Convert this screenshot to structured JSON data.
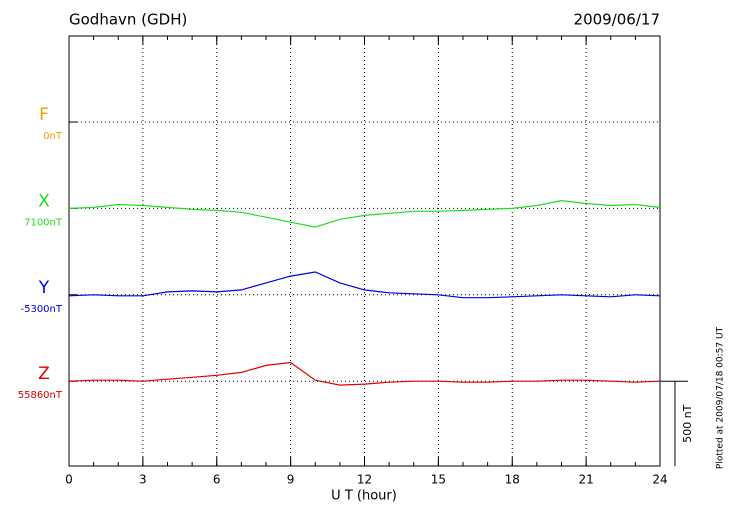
{
  "chart_data": {
    "type": "line",
    "title": "Godhavn (GDH)",
    "date": "2009/06/17",
    "xlabel": "U T (hour)",
    "footnote": "Plotted at 2009/07/18 00:57 UT",
    "xlim": [
      0,
      24
    ],
    "xticks": [
      0,
      3,
      6,
      9,
      12,
      15,
      18,
      21,
      24
    ],
    "grid": true,
    "scale_bar": {
      "value": 500,
      "label": "500 nT"
    },
    "x": [
      0,
      1,
      2,
      3,
      4,
      5,
      6,
      7,
      8,
      9,
      10,
      11,
      12,
      13,
      14,
      15,
      16,
      17,
      18,
      19,
      20,
      21,
      22,
      23,
      24
    ],
    "series": [
      {
        "name": "F",
        "color": "#f0a000",
        "baseline": {
          "value": 0,
          "label": "0nT"
        },
        "values": [
          null,
          null,
          null,
          null,
          null,
          null,
          null,
          null,
          null,
          null,
          null,
          null,
          null,
          null,
          null,
          null,
          null,
          null,
          null,
          null,
          null,
          null,
          null,
          null,
          null
        ]
      },
      {
        "name": "X",
        "color": "#22dd22",
        "baseline": {
          "value": 7100,
          "label": "7100nT"
        },
        "values": [
          7100,
          7106,
          7123,
          7117,
          7106,
          7094,
          7088,
          7077,
          7048,
          7019,
          6990,
          7036,
          7059,
          7071,
          7083,
          7083,
          7088,
          7094,
          7100,
          7117,
          7146,
          7129,
          7117,
          7123,
          7106
        ]
      },
      {
        "name": "Y",
        "color": "#0000dd",
        "baseline": {
          "value": -5300,
          "label": "-5300nT"
        },
        "values": [
          -5306,
          -5300,
          -5306,
          -5306,
          -5283,
          -5277,
          -5283,
          -5271,
          -5230,
          -5190,
          -5166,
          -5230,
          -5271,
          -5288,
          -5294,
          -5300,
          -5317,
          -5317,
          -5312,
          -5306,
          -5300,
          -5306,
          -5312,
          -5300,
          -5306
        ]
      },
      {
        "name": "Z",
        "color": "#dd0000",
        "baseline": {
          "value": 55860,
          "label": "55860nT"
        },
        "values": [
          55860,
          55866,
          55866,
          55860,
          55872,
          55883,
          55895,
          55912,
          55953,
          55970,
          55866,
          55837,
          55843,
          55854,
          55860,
          55860,
          55854,
          55854,
          55860,
          55860,
          55866,
          55866,
          55860,
          55854,
          55860
        ]
      }
    ]
  }
}
